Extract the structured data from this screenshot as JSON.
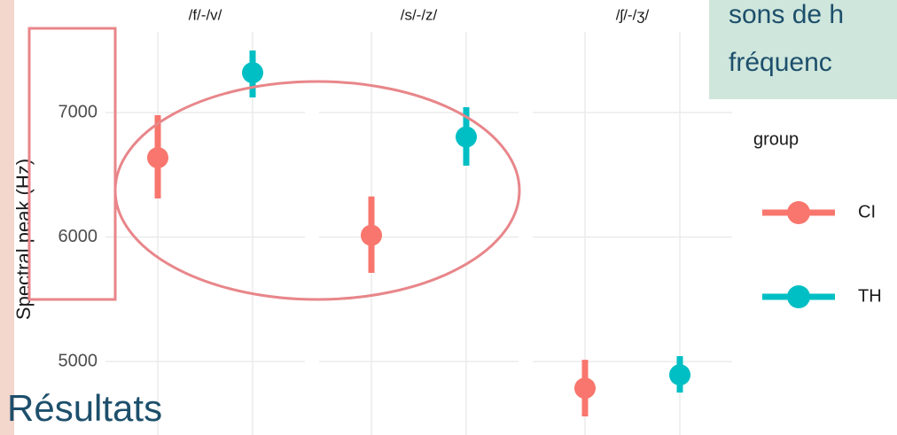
{
  "chart_data": {
    "type": "pointrange",
    "facets": [
      "/f/-/v/",
      "/s/-/z/",
      "/ʃ/-/ʒ/"
    ],
    "ylabel": "Spectral peak (Hz)",
    "ylim": [
      4410,
      7904
    ],
    "yticks": [
      5000,
      6000,
      7000
    ],
    "grid": true,
    "legend_title": "group",
    "series": [
      {
        "name": "CI",
        "color": "#F8766D",
        "values": [
          6637,
          6014,
          4786
        ],
        "low": [
          6310,
          5712,
          4559
        ],
        "high": [
          6979,
          6326,
          5014
        ]
      },
      {
        "name": "TH",
        "color": "#00BFC4",
        "values": [
          7320,
          6804,
          4893
        ],
        "low": [
          7121,
          6573,
          4751
        ],
        "high": [
          7498,
          7043,
          5043
        ]
      }
    ]
  },
  "slide": {
    "title": "Résultats",
    "callout": [
      "sons de h",
      "fréquenc"
    ]
  }
}
